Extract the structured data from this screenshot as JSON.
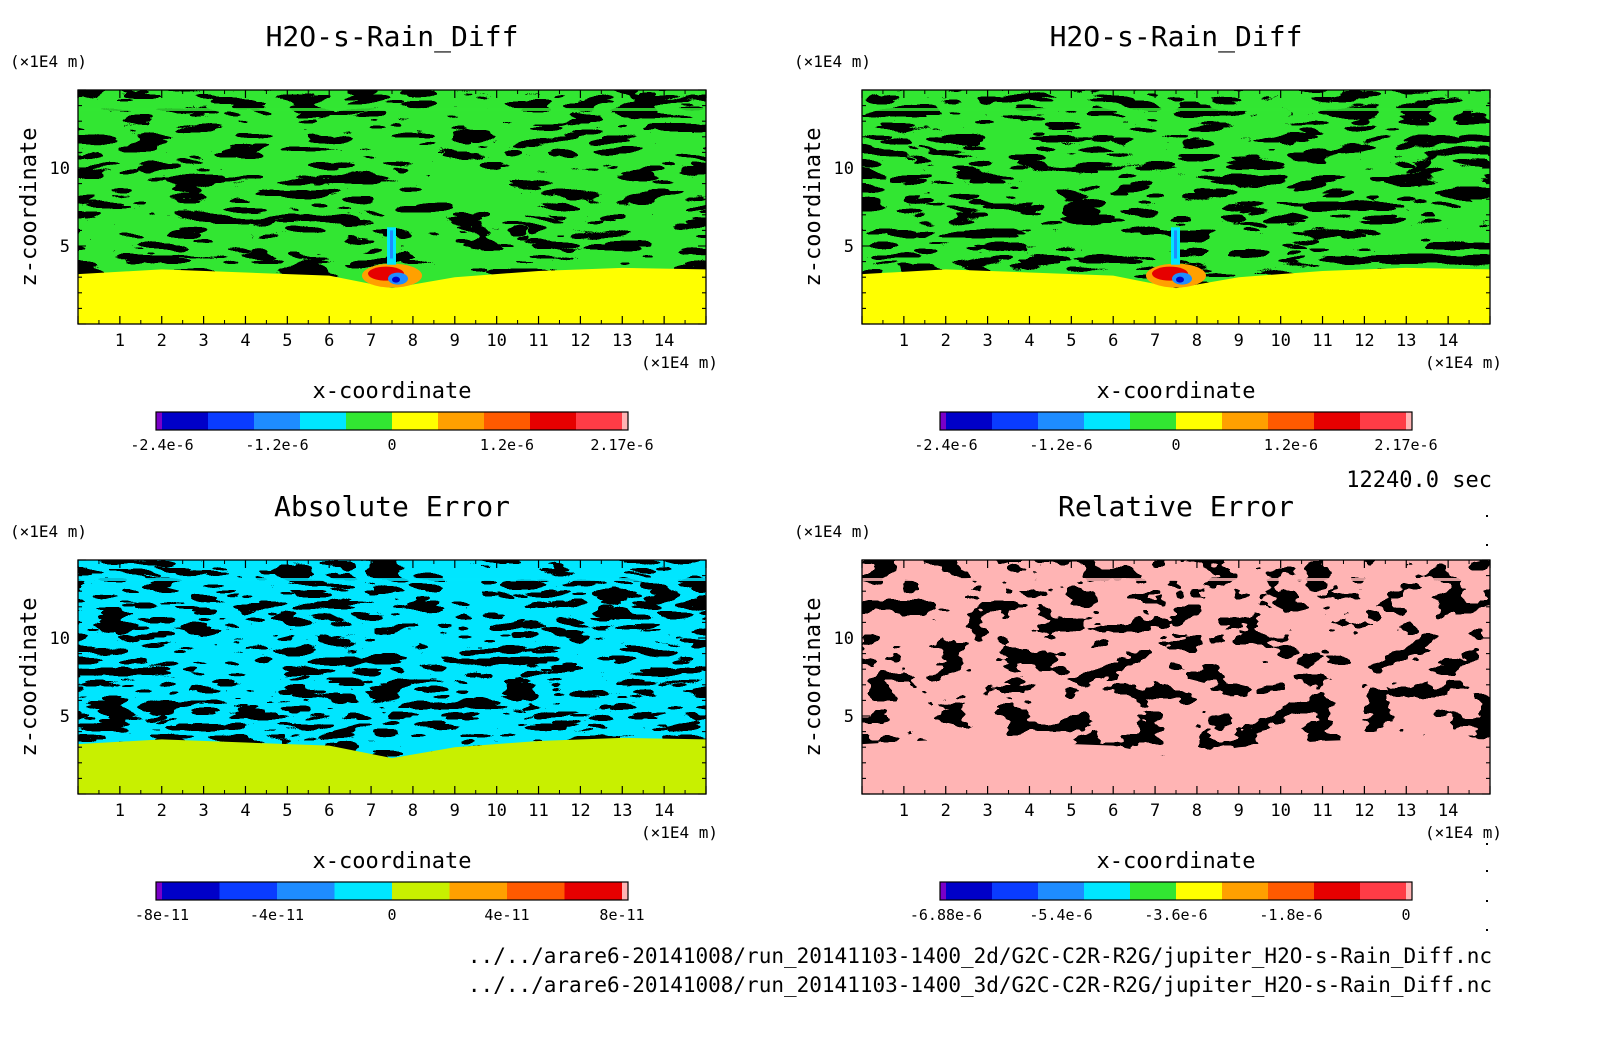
{
  "time_label": "12240.0 sec",
  "files": [
    "../../arare6-20141008/run_20141103-1400_2d/G2C-C2R-R2G/jupiter_H2O-s-Rain_Diff.nc",
    "../../arare6-20141008/run_20141103-1400_3d/G2C-C2R-R2G/jupiter_H2O-s-Rain_Diff.nc"
  ],
  "chart_data": [
    {
      "type": "heatmap",
      "title": "H2O-s-Rain_Diff",
      "xlabel": "x-coordinate",
      "ylabel": "z-coordinate",
      "x_unit": "(×1E4 m)",
      "y_unit": "(×1E4 m)",
      "xlim": [
        0,
        15
      ],
      "ylim": [
        0,
        15
      ],
      "xticks": [
        "1",
        "2",
        "3",
        "4",
        "5",
        "6",
        "7",
        "8",
        "9",
        "10",
        "11",
        "12",
        "13",
        "14"
      ],
      "yticks": [
        "5",
        "10"
      ],
      "field": "layered noisy pattern: green/yellow bands above ~3e4 m, uniform yellow below, localized blue-red anomaly near x=7.5e4 m z=3e4 m",
      "colorbar": {
        "colors": [
          "#7a00c8",
          "#0000c8",
          "#0a3cff",
          "#1e8cff",
          "#00e6ff",
          "#32e632",
          "#ffff00",
          "#ffa000",
          "#ff5a00",
          "#e60000",
          "#ff3c46",
          "#ffb4b4"
        ],
        "ticks": [
          "-2.4e-6",
          "-1.2e-6",
          "0",
          "1.2e-6",
          "2.17e-6"
        ]
      }
    },
    {
      "type": "heatmap",
      "title": "H2O-s-Rain_Diff",
      "xlabel": "x-coordinate",
      "ylabel": "z-coordinate",
      "x_unit": "(×1E4 m)",
      "y_unit": "(×1E4 m)",
      "xlim": [
        0,
        15
      ],
      "ylim": [
        0,
        15
      ],
      "xticks": [
        "1",
        "2",
        "3",
        "4",
        "5",
        "6",
        "7",
        "8",
        "9",
        "10",
        "11",
        "12",
        "13",
        "14"
      ],
      "yticks": [
        "5",
        "10"
      ],
      "field": "identical to the left panel",
      "colorbar": {
        "colors": [
          "#7a00c8",
          "#0000c8",
          "#0a3cff",
          "#1e8cff",
          "#00e6ff",
          "#32e632",
          "#ffff00",
          "#ffa000",
          "#ff5a00",
          "#e60000",
          "#ff3c46",
          "#ffb4b4"
        ],
        "ticks": [
          "-2.4e-6",
          "-1.2e-6",
          "0",
          "1.2e-6",
          "2.17e-6"
        ]
      }
    },
    {
      "type": "heatmap",
      "title": "Absolute Error",
      "xlabel": "x-coordinate",
      "ylabel": "z-coordinate",
      "x_unit": "(×1E4 m)",
      "y_unit": "(×1E4 m)",
      "xlim": [
        0,
        15
      ],
      "ylim": [
        0,
        15
      ],
      "xticks": [
        "1",
        "2",
        "3",
        "4",
        "5",
        "6",
        "7",
        "8",
        "9",
        "10",
        "11",
        "12",
        "13",
        "14"
      ],
      "yticks": [
        "5",
        "10"
      ],
      "field": "cyan/yellow-green noisy pattern above ~3e4 m, uniform yellow-green below",
      "colorbar": {
        "colors": [
          "#7a00c8",
          "#0000c8",
          "#0a3cff",
          "#1e8cff",
          "#00e6ff",
          "#c8f000",
          "#ffa000",
          "#ff5a00",
          "#e60000",
          "#ffb4b4"
        ],
        "ticks": [
          "-8e-11",
          "-4e-11",
          "0",
          "4e-11",
          "8e-11"
        ]
      }
    },
    {
      "type": "heatmap",
      "title": "Relative Error",
      "xlabel": "x-coordinate",
      "ylabel": "z-coordinate",
      "x_unit": "(×1E4 m)",
      "y_unit": "(×1E4 m)",
      "xlim": [
        0,
        15
      ],
      "ylim": [
        0,
        15
      ],
      "xticks": [
        "1",
        "2",
        "3",
        "4",
        "5",
        "6",
        "7",
        "8",
        "9",
        "10",
        "11",
        "12",
        "13",
        "14"
      ],
      "yticks": [
        "5",
        "10"
      ],
      "field": "red/pink noisy pattern above ~3e4 m, uniform pink below",
      "colorbar": {
        "colors": [
          "#7a00c8",
          "#0000c8",
          "#0a3cff",
          "#1e8cff",
          "#00e6ff",
          "#32e632",
          "#ffff00",
          "#ffa000",
          "#ff5a00",
          "#e60000",
          "#ff3c46",
          "#ffb4b4"
        ],
        "ticks": [
          "-6.88e-6",
          "-5.4e-6",
          "-3.6e-6",
          "-1.8e-6",
          "0"
        ]
      }
    }
  ]
}
